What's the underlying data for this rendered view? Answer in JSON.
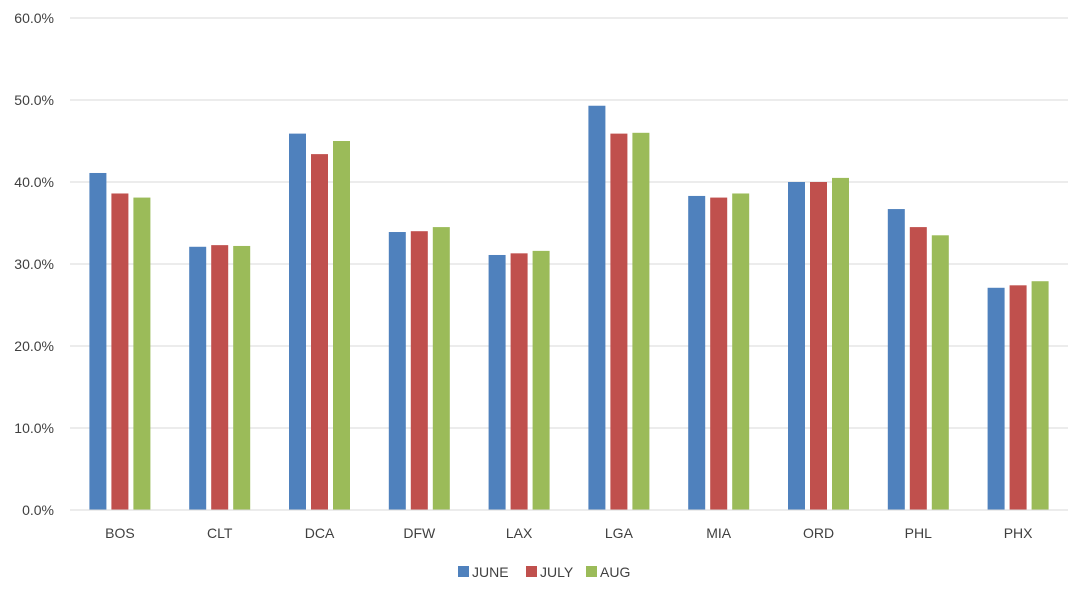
{
  "chart_data": {
    "type": "bar",
    "title": "",
    "xlabel": "",
    "ylabel": "",
    "categories": [
      "BOS",
      "CLT",
      "DCA",
      "DFW",
      "LAX",
      "LGA",
      "MIA",
      "ORD",
      "PHL",
      "PHX"
    ],
    "series": [
      {
        "name": "JUNE",
        "color": "#4F81BD",
        "values": [
          41.1,
          32.1,
          45.9,
          33.9,
          31.1,
          49.3,
          38.3,
          40.0,
          36.7,
          27.1
        ]
      },
      {
        "name": "JULY",
        "color": "#C0504D",
        "values": [
          38.6,
          32.3,
          43.4,
          34.0,
          31.3,
          45.9,
          38.1,
          40.0,
          34.5,
          27.4
        ]
      },
      {
        "name": "AUG",
        "color": "#9BBB59",
        "values": [
          38.1,
          32.2,
          45.0,
          34.5,
          31.6,
          46.0,
          38.6,
          40.5,
          33.5,
          27.9
        ]
      }
    ],
    "ylim": [
      0,
      60
    ],
    "yticks": [
      {
        "value": 0,
        "label": "0.0%"
      },
      {
        "value": 10,
        "label": "10.0%"
      },
      {
        "value": 20,
        "label": "20.0%"
      },
      {
        "value": 30,
        "label": "30.0%"
      },
      {
        "value": 40,
        "label": "40.0%"
      },
      {
        "value": 50,
        "label": "50.0%"
      },
      {
        "value": 60,
        "label": "60.0%"
      }
    ],
    "grid": true,
    "legend_position": "bottom"
  }
}
